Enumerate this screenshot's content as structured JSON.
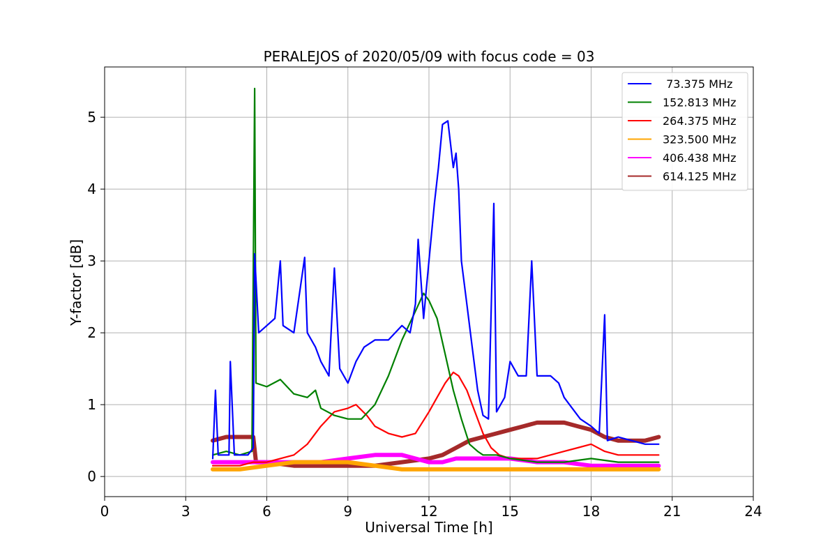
{
  "chart_data": {
    "type": "line",
    "title": "PERALEJOS of 2020/05/09 with focus code = 03",
    "xlabel": "Universal Time [h]",
    "ylabel": "Y-factor [dB]",
    "xlim": [
      0,
      24
    ],
    "ylim": [
      -0.28,
      5.7
    ],
    "xticks": [
      0,
      3,
      6,
      9,
      12,
      15,
      18,
      21,
      24
    ],
    "yticks": [
      0,
      1,
      2,
      3,
      4,
      5
    ],
    "grid": true,
    "legend_position": "top-right",
    "series": [
      {
        "name": " 73.375 MHz",
        "color": "#0000ff",
        "points": [
          [
            4.0,
            0.25
          ],
          [
            4.1,
            1.2
          ],
          [
            4.2,
            0.3
          ],
          [
            4.6,
            0.3
          ],
          [
            4.65,
            1.6
          ],
          [
            4.8,
            0.3
          ],
          [
            5.3,
            0.3
          ],
          [
            5.5,
            0.4
          ],
          [
            5.55,
            3.1
          ],
          [
            5.7,
            2.0
          ],
          [
            6.0,
            2.1
          ],
          [
            6.3,
            2.2
          ],
          [
            6.5,
            3.0
          ],
          [
            6.6,
            2.1
          ],
          [
            7.0,
            2.0
          ],
          [
            7.4,
            3.05
          ],
          [
            7.5,
            2.0
          ],
          [
            7.8,
            1.8
          ],
          [
            8.0,
            1.6
          ],
          [
            8.3,
            1.4
          ],
          [
            8.5,
            2.9
          ],
          [
            8.7,
            1.5
          ],
          [
            9.0,
            1.3
          ],
          [
            9.3,
            1.6
          ],
          [
            9.6,
            1.8
          ],
          [
            10.0,
            1.9
          ],
          [
            10.5,
            1.9
          ],
          [
            11.0,
            2.1
          ],
          [
            11.3,
            2.0
          ],
          [
            11.5,
            2.4
          ],
          [
            11.6,
            3.3
          ],
          [
            11.8,
            2.2
          ],
          [
            12.0,
            3.0
          ],
          [
            12.1,
            3.4
          ],
          [
            12.2,
            3.8
          ],
          [
            12.35,
            4.3
          ],
          [
            12.5,
            4.9
          ],
          [
            12.7,
            4.95
          ],
          [
            12.9,
            4.3
          ],
          [
            13.0,
            4.5
          ],
          [
            13.1,
            4.0
          ],
          [
            13.2,
            3.0
          ],
          [
            13.4,
            2.4
          ],
          [
            13.6,
            1.8
          ],
          [
            13.8,
            1.2
          ],
          [
            14.0,
            0.85
          ],
          [
            14.2,
            0.8
          ],
          [
            14.4,
            3.8
          ],
          [
            14.5,
            0.9
          ],
          [
            14.8,
            1.1
          ],
          [
            15.0,
            1.6
          ],
          [
            15.3,
            1.4
          ],
          [
            15.6,
            1.4
          ],
          [
            15.8,
            3.0
          ],
          [
            16.0,
            1.4
          ],
          [
            16.5,
            1.4
          ],
          [
            16.8,
            1.3
          ],
          [
            17.0,
            1.1
          ],
          [
            17.3,
            0.95
          ],
          [
            17.6,
            0.8
          ],
          [
            18.0,
            0.7
          ],
          [
            18.3,
            0.6
          ],
          [
            18.5,
            2.25
          ],
          [
            18.6,
            0.5
          ],
          [
            19.0,
            0.55
          ],
          [
            19.5,
            0.5
          ],
          [
            20.0,
            0.45
          ],
          [
            20.5,
            0.45
          ]
        ]
      },
      {
        "name": "152.813 MHz",
        "color": "#008000",
        "points": [
          [
            4.0,
            0.3
          ],
          [
            4.5,
            0.35
          ],
          [
            5.0,
            0.3
          ],
          [
            5.45,
            0.35
          ],
          [
            5.55,
            5.4
          ],
          [
            5.6,
            1.3
          ],
          [
            6.0,
            1.25
          ],
          [
            6.5,
            1.35
          ],
          [
            7.0,
            1.15
          ],
          [
            7.5,
            1.1
          ],
          [
            7.8,
            1.2
          ],
          [
            8.0,
            0.95
          ],
          [
            8.5,
            0.85
          ],
          [
            9.0,
            0.8
          ],
          [
            9.5,
            0.8
          ],
          [
            10.0,
            1.0
          ],
          [
            10.5,
            1.4
          ],
          [
            11.0,
            1.9
          ],
          [
            11.5,
            2.3
          ],
          [
            11.8,
            2.55
          ],
          [
            12.0,
            2.45
          ],
          [
            12.3,
            2.2
          ],
          [
            12.6,
            1.7
          ],
          [
            12.9,
            1.2
          ],
          [
            13.2,
            0.8
          ],
          [
            13.5,
            0.45
          ],
          [
            13.8,
            0.35
          ],
          [
            14.0,
            0.3
          ],
          [
            14.5,
            0.3
          ],
          [
            15.0,
            0.25
          ],
          [
            16.0,
            0.2
          ],
          [
            17.0,
            0.2
          ],
          [
            18.0,
            0.25
          ],
          [
            19.0,
            0.2
          ],
          [
            20.0,
            0.2
          ],
          [
            20.5,
            0.2
          ]
        ]
      },
      {
        "name": "264.375 MHz",
        "color": "#ff0000",
        "points": [
          [
            4.0,
            0.15
          ],
          [
            5.0,
            0.15
          ],
          [
            5.5,
            0.2
          ],
          [
            6.0,
            0.2
          ],
          [
            7.0,
            0.3
          ],
          [
            7.5,
            0.45
          ],
          [
            8.0,
            0.7
          ],
          [
            8.5,
            0.9
          ],
          [
            9.0,
            0.95
          ],
          [
            9.3,
            1.0
          ],
          [
            9.7,
            0.85
          ],
          [
            10.0,
            0.7
          ],
          [
            10.5,
            0.6
          ],
          [
            11.0,
            0.55
          ],
          [
            11.5,
            0.6
          ],
          [
            12.0,
            0.9
          ],
          [
            12.3,
            1.1
          ],
          [
            12.6,
            1.3
          ],
          [
            12.9,
            1.45
          ],
          [
            13.1,
            1.4
          ],
          [
            13.4,
            1.2
          ],
          [
            13.7,
            0.9
          ],
          [
            14.0,
            0.6
          ],
          [
            14.3,
            0.4
          ],
          [
            14.6,
            0.3
          ],
          [
            15.0,
            0.25
          ],
          [
            16.0,
            0.25
          ],
          [
            17.0,
            0.35
          ],
          [
            17.5,
            0.4
          ],
          [
            18.0,
            0.45
          ],
          [
            18.5,
            0.35
          ],
          [
            19.0,
            0.3
          ],
          [
            20.0,
            0.3
          ],
          [
            20.5,
            0.3
          ]
        ]
      },
      {
        "name": "323.500 MHz",
        "color": "#ffa500",
        "points": [
          [
            4.0,
            0.1
          ],
          [
            5.0,
            0.1
          ],
          [
            6.0,
            0.15
          ],
          [
            7.0,
            0.2
          ],
          [
            8.0,
            0.2
          ],
          [
            9.0,
            0.2
          ],
          [
            10.0,
            0.15
          ],
          [
            11.0,
            0.1
          ],
          [
            12.0,
            0.1
          ],
          [
            13.0,
            0.1
          ],
          [
            14.0,
            0.1
          ],
          [
            15.0,
            0.1
          ],
          [
            16.0,
            0.1
          ],
          [
            17.0,
            0.1
          ],
          [
            18.0,
            0.1
          ],
          [
            19.0,
            0.1
          ],
          [
            20.0,
            0.1
          ],
          [
            20.5,
            0.1
          ]
        ]
      },
      {
        "name": "406.438 MHz",
        "color": "#ff00ff",
        "points": [
          [
            4.0,
            0.2
          ],
          [
            5.0,
            0.2
          ],
          [
            6.0,
            0.2
          ],
          [
            7.0,
            0.2
          ],
          [
            8.0,
            0.2
          ],
          [
            9.0,
            0.25
          ],
          [
            10.0,
            0.3
          ],
          [
            11.0,
            0.3
          ],
          [
            12.0,
            0.2
          ],
          [
            12.5,
            0.2
          ],
          [
            13.0,
            0.25
          ],
          [
            14.0,
            0.25
          ],
          [
            15.0,
            0.25
          ],
          [
            16.0,
            0.2
          ],
          [
            17.0,
            0.2
          ],
          [
            18.0,
            0.15
          ],
          [
            19.0,
            0.15
          ],
          [
            20.0,
            0.15
          ],
          [
            20.5,
            0.15
          ]
        ]
      },
      {
        "name": "614.125 MHz",
        "color": "#a52a2a",
        "points": [
          [
            4.0,
            0.5
          ],
          [
            4.5,
            0.55
          ],
          [
            5.0,
            0.55
          ],
          [
            5.5,
            0.55
          ],
          [
            5.6,
            0.2
          ],
          [
            6.0,
            0.2
          ],
          [
            7.0,
            0.15
          ],
          [
            8.0,
            0.15
          ],
          [
            9.0,
            0.15
          ],
          [
            10.0,
            0.15
          ],
          [
            11.0,
            0.2
          ],
          [
            12.0,
            0.25
          ],
          [
            12.5,
            0.3
          ],
          [
            13.0,
            0.4
          ],
          [
            13.5,
            0.5
          ],
          [
            14.0,
            0.55
          ],
          [
            14.5,
            0.6
          ],
          [
            15.0,
            0.65
          ],
          [
            15.5,
            0.7
          ],
          [
            16.0,
            0.75
          ],
          [
            16.5,
            0.75
          ],
          [
            17.0,
            0.75
          ],
          [
            17.5,
            0.7
          ],
          [
            18.0,
            0.65
          ],
          [
            18.5,
            0.55
          ],
          [
            19.0,
            0.5
          ],
          [
            19.5,
            0.5
          ],
          [
            20.0,
            0.5
          ],
          [
            20.5,
            0.55
          ]
        ]
      }
    ]
  }
}
